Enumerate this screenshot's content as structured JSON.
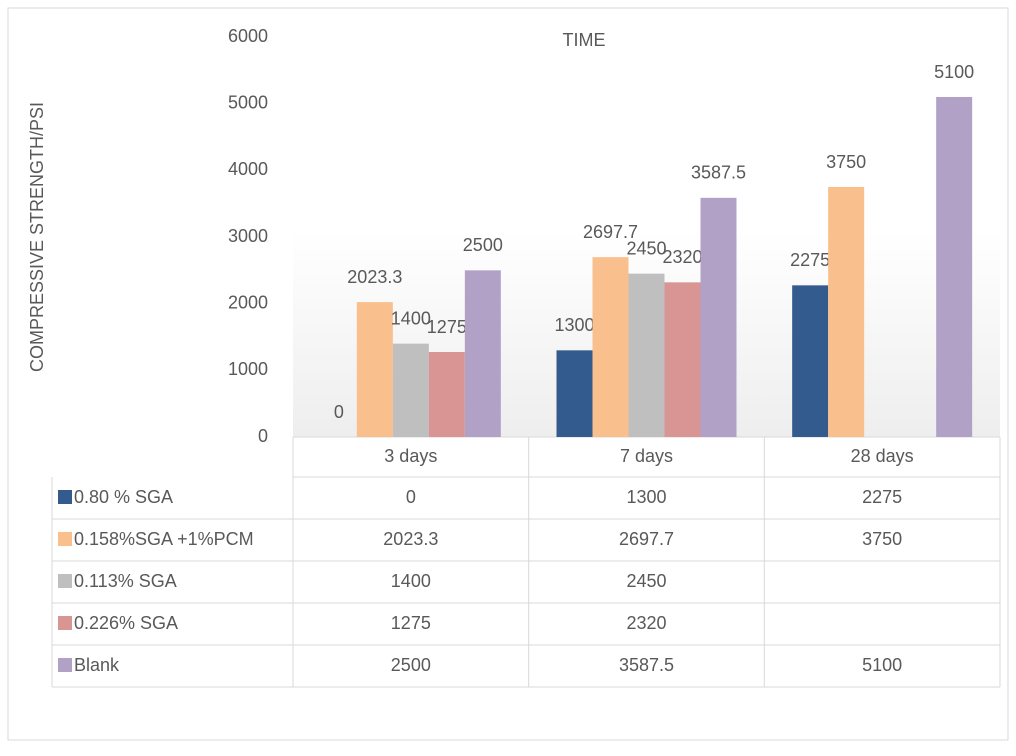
{
  "chart_data": {
    "type": "bar",
    "title": "TIME",
    "y_label": "COMPRESSIVE STRENGTH/PSI",
    "categories": [
      "3 days",
      "7 days",
      "28 days"
    ],
    "series": [
      {
        "name": "0.80 % SGA",
        "color": "#335b8e",
        "values": [
          0,
          1300,
          2275
        ]
      },
      {
        "name": "0.158%SGA +1%PCM",
        "color": "#f9bf8c",
        "values": [
          2023.3,
          2697.7,
          3750
        ]
      },
      {
        "name": "0.113% SGA",
        "color": "#bfbfbf",
        "values": [
          1400,
          2450,
          null
        ]
      },
      {
        "name": "0.226% SGA",
        "color": "#d99594",
        "values": [
          1275,
          2320,
          null
        ]
      },
      {
        "name": "Blank",
        "color": "#b2a1c7",
        "values": [
          2500,
          3587.5,
          5100
        ]
      }
    ],
    "ylim": [
      0,
      6000
    ],
    "yticks": [
      0,
      1000,
      2000,
      3000,
      4000,
      5000,
      6000
    ],
    "data_table": true
  }
}
